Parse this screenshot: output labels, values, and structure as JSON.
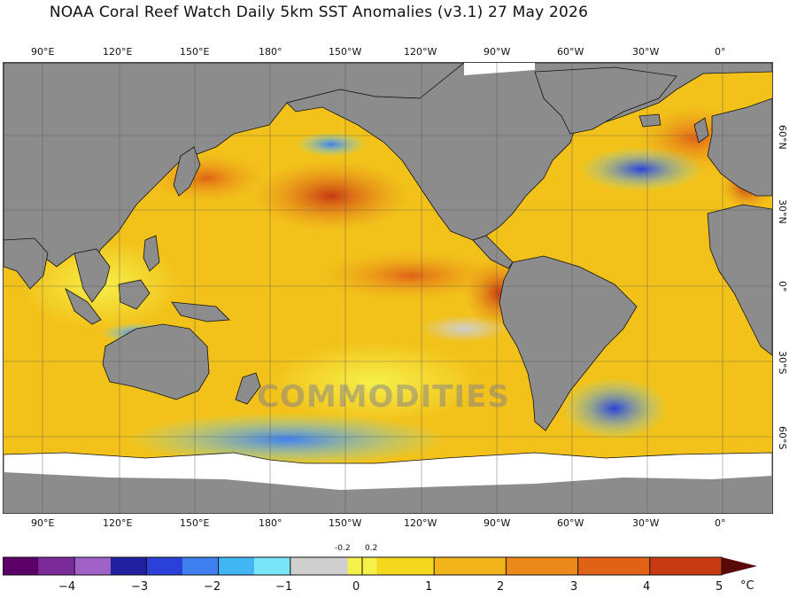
{
  "title": "NOAA Coral Reef Watch Daily 5km SST Anomalies  (v3.1)   27 May 2026",
  "longitude_labels": [
    "90°E",
    "120°E",
    "150°E",
    "180°",
    "150°W",
    "120°W",
    "90°W",
    "60°W",
    "30°W",
    "0°"
  ],
  "latitude_labels": [
    "60°N",
    "30°N",
    "0°",
    "30°S",
    "60°S"
  ],
  "watermark": "COMMODITIES",
  "colorbar": {
    "unit": "°C",
    "ticks": [
      "−4",
      "−3",
      "−2",
      "−1",
      "0",
      "1",
      "2",
      "3",
      "4",
      "5"
    ],
    "small_ticks": [
      "-0.2",
      "0.2"
    ],
    "colors": [
      "#5b0066",
      "#7b2a9a",
      "#a062c7",
      "#2020a0",
      "#2a40d8",
      "#3f7ff0",
      "#40b7f3",
      "#78e6f7",
      "#cfcfcf",
      "#f6f04a",
      "#f5d81e",
      "#f0b41a",
      "#eb8a1a",
      "#e06216",
      "#c83a14",
      "#9c1a10",
      "#5a0808"
    ]
  },
  "colors": {
    "land": "#8c8c8c",
    "ice": "#ffffff",
    "ocean_base": "#f2c21a"
  }
}
